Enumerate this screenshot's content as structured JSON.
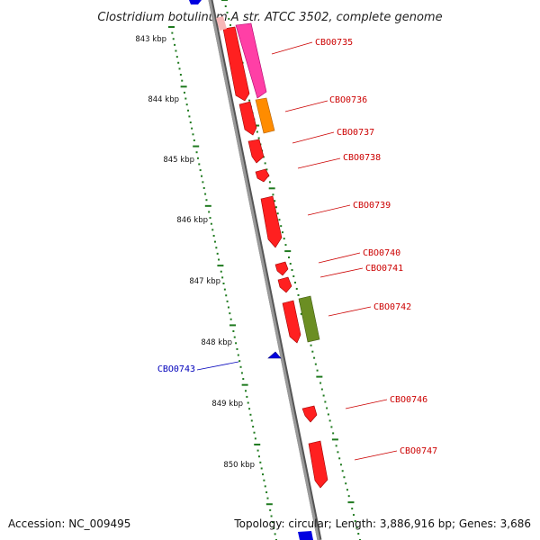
{
  "title": "Clostridium botulinum A str. ATCC 3502, complete genome",
  "footer": {
    "accession": "Accession: NC_009495",
    "summary": "Topology: circular; Length: 3,886,916 bp; Genes: 3,686"
  },
  "colors": {
    "forward_label": "#cc0000",
    "reverse_label": "#0000bb",
    "dotted_track": "#1f7a1f",
    "backbone": "#888888"
  },
  "scale_ticks": [
    "843 kbp",
    "844 kbp",
    "845 kbp",
    "846 kbp",
    "847 kbp",
    "848 kbp",
    "849 kbp",
    "850 kbp"
  ],
  "genes": [
    {
      "label": "CBO0735",
      "strand": "forward"
    },
    {
      "label": "CBO0736",
      "strand": "forward"
    },
    {
      "label": "CBO0737",
      "strand": "forward"
    },
    {
      "label": "CBO0738",
      "strand": "forward"
    },
    {
      "label": "CBO0739",
      "strand": "forward"
    },
    {
      "label": "CBO0740",
      "strand": "forward"
    },
    {
      "label": "CBO0741",
      "strand": "forward"
    },
    {
      "label": "CBO0742",
      "strand": "forward"
    },
    {
      "label": "CBO0743",
      "strand": "reverse"
    },
    {
      "label": "CBO0746",
      "strand": "forward"
    },
    {
      "label": "CBO0747",
      "strand": "forward"
    }
  ]
}
